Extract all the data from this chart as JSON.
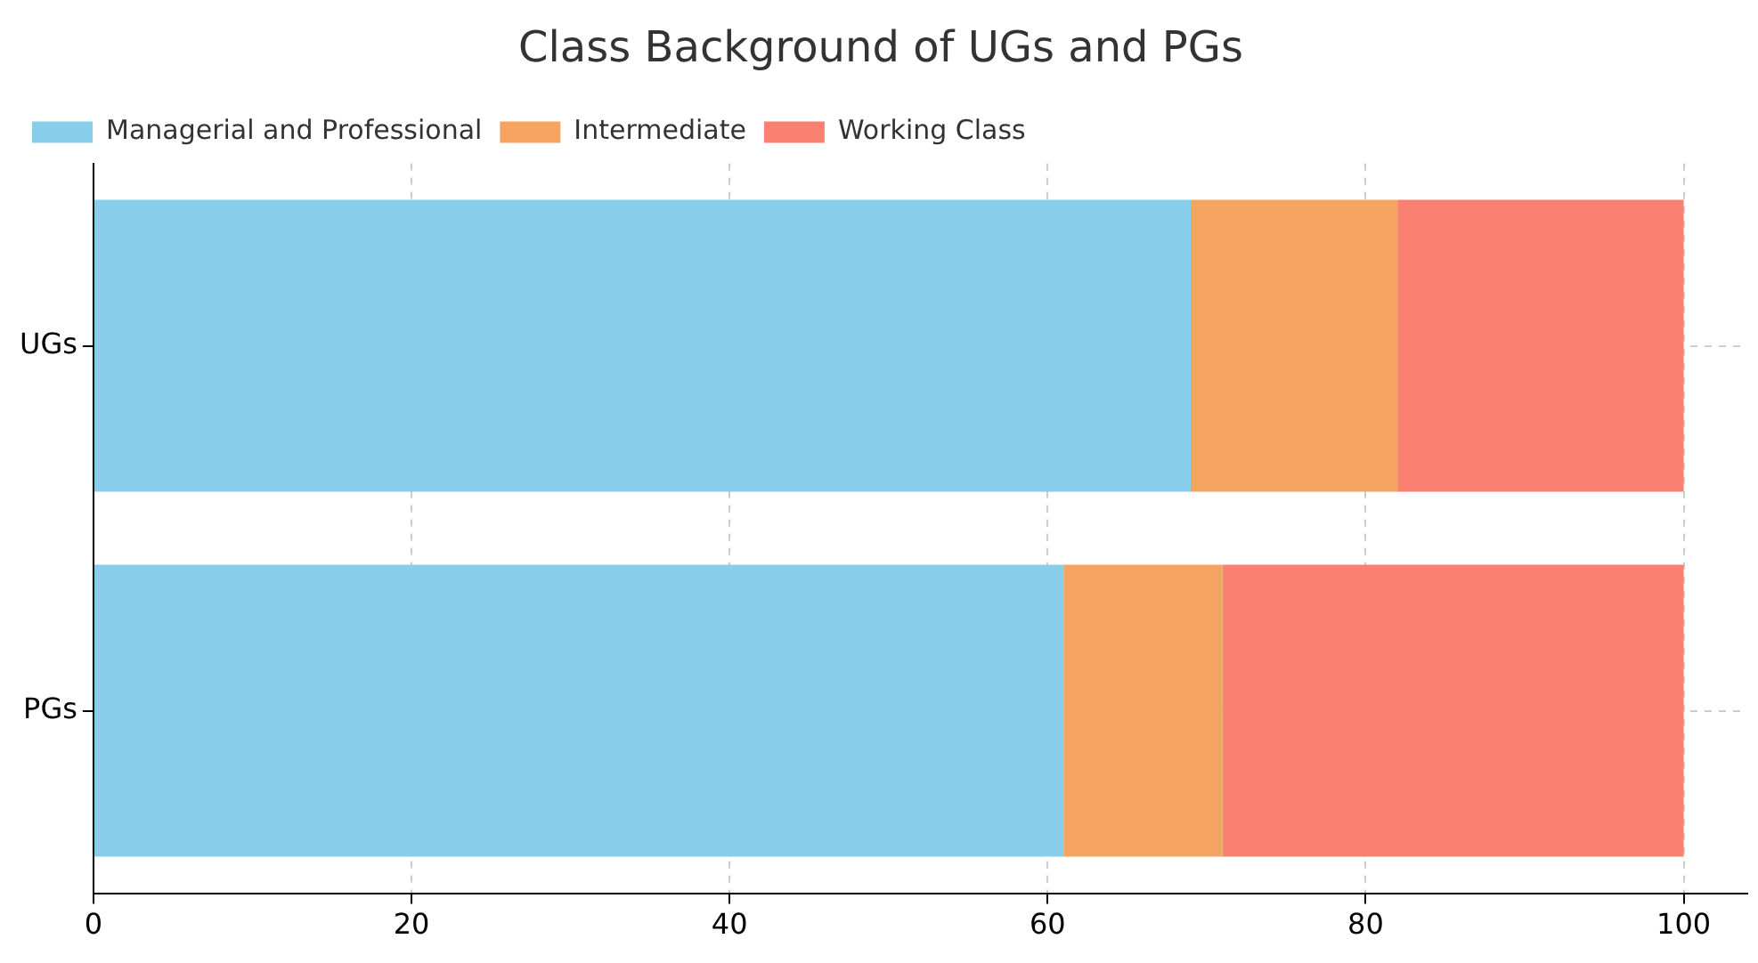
{
  "chart_data": {
    "type": "bar",
    "title": "Class Background of UGs and PGs",
    "orientation": "horizontal",
    "stacked": true,
    "categories": [
      "UGs",
      "PGs"
    ],
    "series": [
      {
        "name": "Managerial and Professional",
        "color": "#87ceeb",
        "values": [
          69,
          61
        ]
      },
      {
        "name": "Intermediate",
        "color": "#f4a460",
        "values": [
          13,
          10
        ]
      },
      {
        "name": "Working Class",
        "color": "#fa8072",
        "values": [
          18,
          29
        ]
      }
    ],
    "xlim": [
      0,
      104
    ],
    "xticks": [
      0,
      20,
      40,
      60,
      80,
      100
    ],
    "grid": true,
    "legend": "top left"
  }
}
